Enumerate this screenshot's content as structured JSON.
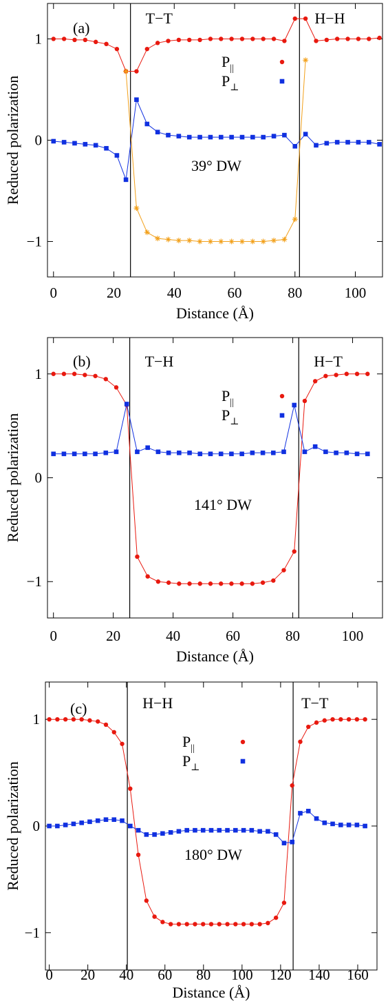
{
  "colors": {
    "p_parallel": "#e8190f",
    "p_perp": "#1030e0",
    "p_parallel_alt": "#f2a01a",
    "axes": "#000000"
  },
  "legend_entries": [
    {
      "base": "P",
      "sub": "||"
    },
    {
      "base": "P",
      "sub": "⊥"
    }
  ],
  "chart_data": [
    {
      "type": "line",
      "panel_label": "(a)",
      "domain_walls": [
        {
          "x": 25.5,
          "label": "T−T"
        },
        {
          "x": 81.5,
          "label": "H−H"
        }
      ],
      "wall_type": "39° DW",
      "xlabel": "Distance (Å)",
      "ylabel": "Reduced polarization",
      "xlim": [
        -2,
        109
      ],
      "ylim": [
        -1.35,
        1.35
      ],
      "xticks": [
        0,
        20,
        40,
        60,
        80,
        100
      ],
      "xtick_labels": [
        "0",
        "20",
        "40",
        "60",
        "80",
        "100"
      ],
      "yticks": [
        -1,
        0,
        1
      ],
      "ytick_labels": [
        "−1",
        "0",
        "1"
      ],
      "series": [
        {
          "name": "P||",
          "marker": "circle",
          "color_key": "p_parallel",
          "x": [
            0,
            3.5,
            7,
            10.5,
            14,
            17.5,
            21,
            24,
            27.5,
            31,
            34.5,
            38,
            41.5,
            45,
            48.5,
            52,
            55.5,
            59,
            62.5,
            66,
            69.5,
            73,
            76.5,
            80,
            83.5,
            87,
            90.5,
            94,
            97.5,
            101,
            104.5,
            108
          ],
          "y": [
            1.0,
            1.0,
            0.99,
            0.99,
            0.97,
            0.95,
            0.9,
            0.68,
            0.68,
            0.9,
            0.96,
            0.98,
            0.99,
            0.99,
            0.99,
            1.0,
            1.0,
            1.0,
            1.0,
            1.0,
            1.0,
            1.0,
            0.98,
            1.2,
            1.2,
            0.98,
            0.99,
            1.0,
            1.0,
            1.0,
            1.0,
            1.01
          ]
        },
        {
          "name": "P⊥",
          "marker": "square",
          "color_key": "p_perp",
          "x": [
            0,
            3.5,
            7,
            10.5,
            14,
            17.5,
            21,
            24,
            27.5,
            31,
            34.5,
            38,
            41.5,
            45,
            48.5,
            52,
            55.5,
            59,
            62.5,
            66,
            69.5,
            73,
            76.5,
            80,
            83.5,
            87,
            90.5,
            94,
            97.5,
            101,
            104.5,
            108
          ],
          "y": [
            -0.01,
            -0.02,
            -0.03,
            -0.04,
            -0.05,
            -0.08,
            -0.15,
            -0.39,
            0.4,
            0.16,
            0.08,
            0.05,
            0.04,
            0.03,
            0.03,
            0.03,
            0.03,
            0.03,
            0.03,
            0.03,
            0.03,
            0.04,
            0.05,
            -0.06,
            0.06,
            -0.05,
            -0.03,
            -0.02,
            -0.02,
            -0.02,
            -0.02,
            -0.04
          ]
        },
        {
          "name": "P|| (domain interior)",
          "marker": "star",
          "color_key": "p_parallel_alt",
          "x": [
            24,
            27.5,
            31,
            34.5,
            38,
            41.5,
            45,
            48.5,
            52,
            55.5,
            59,
            62.5,
            66,
            69.5,
            73,
            76.5,
            80,
            83.5
          ],
          "y": [
            0.68,
            -0.67,
            -0.91,
            -0.97,
            -0.98,
            -0.99,
            -0.99,
            -1.0,
            -1.0,
            -1.0,
            -1.0,
            -1.0,
            -1.0,
            -1.0,
            -0.99,
            -0.98,
            -0.78,
            0.79
          ]
        }
      ]
    },
    {
      "type": "line",
      "panel_label": "(b)",
      "domain_walls": [
        {
          "x": 25.5,
          "label": "T−H"
        },
        {
          "x": 82,
          "label": "H−T"
        }
      ],
      "wall_type": "141° DW",
      "xlabel": "Distance (Å)",
      "ylabel": "Reduced polarization",
      "xlim": [
        -2,
        110
      ],
      "ylim": [
        -1.35,
        1.35
      ],
      "xticks": [
        0,
        20,
        40,
        60,
        80,
        100
      ],
      "xtick_labels": [
        "0",
        "20",
        "40",
        "60",
        "80",
        "100"
      ],
      "yticks": [
        -1,
        0,
        1
      ],
      "ytick_labels": [
        "−1",
        "0",
        "1"
      ],
      "series": [
        {
          "name": "P||",
          "marker": "circle",
          "color_key": "p_parallel",
          "x": [
            0,
            3.5,
            7,
            10.5,
            14,
            17.5,
            21,
            24.5,
            28,
            31.5,
            35,
            38.5,
            42,
            45.5,
            49,
            52.5,
            56,
            59.5,
            63,
            66.5,
            70,
            73.5,
            77,
            80.5,
            84,
            87.5,
            91,
            94.5,
            98,
            101.5,
            105
          ],
          "y": [
            1.0,
            1.0,
            1.0,
            0.99,
            0.98,
            0.95,
            0.87,
            0.7,
            -0.76,
            -0.95,
            -1.0,
            -1.01,
            -1.02,
            -1.02,
            -1.02,
            -1.02,
            -1.02,
            -1.02,
            -1.02,
            -1.02,
            -1.01,
            -0.99,
            -0.89,
            -0.71,
            0.74,
            0.93,
            0.98,
            0.99,
            1.0,
            1.0,
            1.0
          ]
        },
        {
          "name": "P⊥",
          "marker": "square",
          "color_key": "p_perp",
          "x": [
            0,
            3.5,
            7,
            10.5,
            14,
            17.5,
            21,
            24.5,
            28,
            31.5,
            35,
            38.5,
            42,
            45.5,
            49,
            52.5,
            56,
            59.5,
            63,
            66.5,
            70,
            73.5,
            77,
            80.5,
            84,
            87.5,
            91,
            94.5,
            98,
            101.5,
            105
          ],
          "y": [
            0.23,
            0.23,
            0.23,
            0.23,
            0.23,
            0.24,
            0.25,
            0.71,
            0.25,
            0.29,
            0.25,
            0.24,
            0.24,
            0.24,
            0.23,
            0.23,
            0.23,
            0.23,
            0.23,
            0.24,
            0.24,
            0.24,
            0.25,
            0.7,
            0.25,
            0.3,
            0.25,
            0.24,
            0.24,
            0.23,
            0.23
          ]
        }
      ]
    },
    {
      "type": "line",
      "panel_label": "(c)",
      "domain_walls": [
        {
          "x": 40.5,
          "label": "H−H"
        },
        {
          "x": 126.5,
          "label": "T−T"
        }
      ],
      "wall_type": "180° DW",
      "xlabel": "Distance (Å)",
      "ylabel": "Reduced polarization",
      "xlim": [
        -2,
        170
      ],
      "ylim": [
        -1.35,
        1.35
      ],
      "xticks": [
        0,
        20,
        40,
        60,
        80,
        100,
        120,
        140,
        160
      ],
      "xtick_labels": [
        "0",
        "20",
        "40",
        "60",
        "80",
        "100",
        "120",
        "140",
        "160"
      ],
      "yticks": [
        -1,
        0,
        1
      ],
      "ytick_labels": [
        "−1",
        "0",
        "1"
      ],
      "series": [
        {
          "name": "P||",
          "marker": "circle",
          "color_key": "p_parallel",
          "x": [
            0,
            4.2,
            8.4,
            12.6,
            16.8,
            21,
            25.2,
            29.4,
            33.6,
            37.8,
            42,
            46.2,
            50.4,
            54.6,
            58.8,
            63,
            67.2,
            71.4,
            75.6,
            79.8,
            84,
            88.2,
            92.4,
            96.6,
            100.8,
            105,
            109.2,
            113.4,
            117.6,
            121.8,
            126,
            130.2,
            134.4,
            138.6,
            142.8,
            147,
            151.2,
            155.4,
            159.6,
            163.8
          ],
          "y": [
            1.0,
            1.0,
            1.0,
            1.0,
            1.0,
            0.99,
            0.98,
            0.95,
            0.88,
            0.77,
            0.35,
            -0.27,
            -0.7,
            -0.85,
            -0.9,
            -0.92,
            -0.92,
            -0.92,
            -0.92,
            -0.92,
            -0.92,
            -0.92,
            -0.92,
            -0.92,
            -0.92,
            -0.92,
            -0.92,
            -0.91,
            -0.86,
            -0.72,
            0.38,
            0.79,
            0.93,
            0.97,
            0.99,
            1.0,
            1.0,
            1.0,
            1.0,
            1.0
          ]
        },
        {
          "name": "P⊥",
          "marker": "square",
          "color_key": "p_perp",
          "x": [
            0,
            4.2,
            8.4,
            12.6,
            16.8,
            21,
            25.2,
            29.4,
            33.6,
            37.8,
            42,
            46.2,
            50.4,
            54.6,
            58.8,
            63,
            67.2,
            71.4,
            75.6,
            79.8,
            84,
            88.2,
            92.4,
            96.6,
            100.8,
            105,
            109.2,
            113.4,
            117.6,
            121.8,
            126,
            130.2,
            134.4,
            138.6,
            142.8,
            147,
            151.2,
            155.4,
            159.6,
            163.8
          ],
          "y": [
            0.0,
            0.0,
            0.01,
            0.02,
            0.03,
            0.04,
            0.05,
            0.06,
            0.06,
            0.05,
            0.0,
            -0.04,
            -0.08,
            -0.08,
            -0.07,
            -0.06,
            -0.05,
            -0.04,
            -0.04,
            -0.04,
            -0.04,
            -0.04,
            -0.04,
            -0.04,
            -0.04,
            -0.04,
            -0.05,
            -0.05,
            -0.08,
            -0.16,
            -0.15,
            0.12,
            0.14,
            0.07,
            0.03,
            0.02,
            0.01,
            0.01,
            0.01,
            0.0
          ]
        }
      ]
    }
  ]
}
